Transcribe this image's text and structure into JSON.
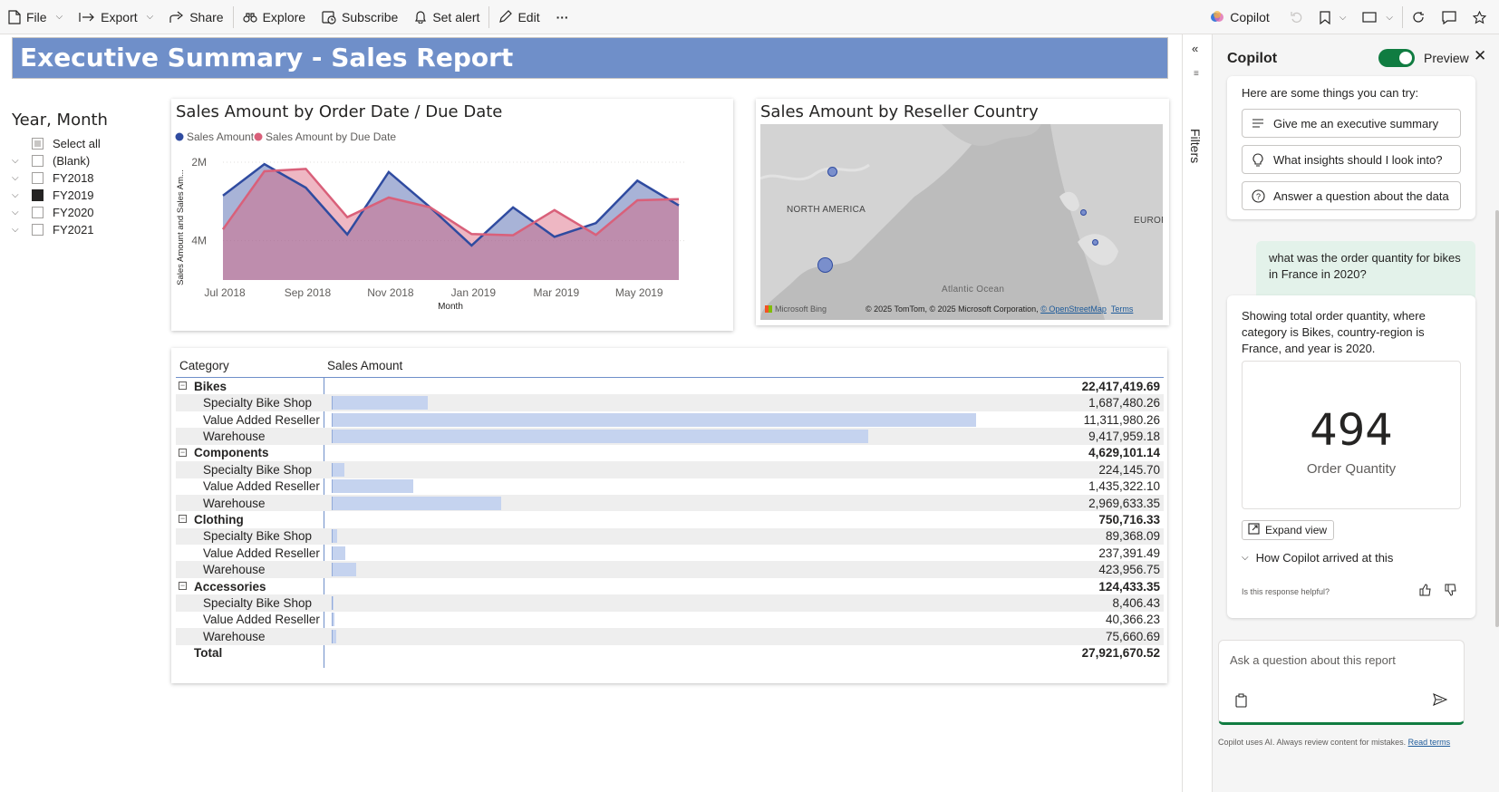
{
  "toolbar": {
    "file": "File",
    "export": "Export",
    "share": "Share",
    "explore": "Explore",
    "subscribe": "Subscribe",
    "set_alert": "Set alert",
    "edit": "Edit",
    "more": "···",
    "copilot": "Copilot"
  },
  "report": {
    "title": "Executive Summary - Sales Report"
  },
  "slicer": {
    "title": "Year, Month",
    "items": [
      {
        "label": "Select all",
        "state": "partial",
        "expandable": false
      },
      {
        "label": "(Blank)",
        "state": "unchecked",
        "expandable": true
      },
      {
        "label": "FY2018",
        "state": "unchecked",
        "expandable": true
      },
      {
        "label": "FY2019",
        "state": "checked",
        "expandable": true
      },
      {
        "label": "FY2020",
        "state": "unchecked",
        "expandable": true
      },
      {
        "label": "FY2021",
        "state": "unchecked",
        "expandable": true
      }
    ]
  },
  "area_chart": {
    "title": "Sales Amount by Order Date / Due Date",
    "legend": [
      "Sales Amount",
      "Sales Amount by Due Date"
    ],
    "ylabel": "Sales Amount and Sales Am...",
    "xlabel": "Month",
    "y_ticks": [
      "4M",
      "2M"
    ],
    "x_ticks": [
      "Jul 2018",
      "Sep 2018",
      "Nov 2018",
      "Jan 2019",
      "Mar 2019",
      "May 2019"
    ]
  },
  "map": {
    "title": "Sales Amount by Reseller Country",
    "label_na": "NORTH AMERICA",
    "label_eu": "EUROF",
    "label_ocean": "Atlantic Ocean",
    "bing": "Microsoft Bing",
    "copyright": "© 2025 TomTom, © 2025 Microsoft Corporation, ",
    "osm": "© OpenStreetMap",
    "terms": "Terms"
  },
  "matrix": {
    "col_category": "Category",
    "col_sales": "Sales Amount",
    "max_value": 11311980.26,
    "rows": [
      {
        "label": "Bikes",
        "value": "22,417,419.69",
        "level": 0
      },
      {
        "label": "Specialty Bike Shop",
        "value": "1,687,480.26",
        "level": 1,
        "num": 1687480.26
      },
      {
        "label": "Value Added Reseller",
        "value": "11,311,980.26",
        "level": 1,
        "num": 11311980.26
      },
      {
        "label": "Warehouse",
        "value": "9,417,959.18",
        "level": 1,
        "num": 9417959.18
      },
      {
        "label": "Components",
        "value": "4,629,101.14",
        "level": 0
      },
      {
        "label": "Specialty Bike Shop",
        "value": "224,145.70",
        "level": 1,
        "num": 224145.7
      },
      {
        "label": "Value Added Reseller",
        "value": "1,435,322.10",
        "level": 1,
        "num": 1435322.1
      },
      {
        "label": "Warehouse",
        "value": "2,969,633.35",
        "level": 1,
        "num": 2969633.35
      },
      {
        "label": "Clothing",
        "value": "750,716.33",
        "level": 0
      },
      {
        "label": "Specialty Bike Shop",
        "value": "89,368.09",
        "level": 1,
        "num": 89368.09
      },
      {
        "label": "Value Added Reseller",
        "value": "237,391.49",
        "level": 1,
        "num": 237391.49
      },
      {
        "label": "Warehouse",
        "value": "423,956.75",
        "level": 1,
        "num": 423956.75
      },
      {
        "label": "Accessories",
        "value": "124,433.35",
        "level": 0
      },
      {
        "label": "Specialty Bike Shop",
        "value": "8,406.43",
        "level": 1,
        "num": 8406.43
      },
      {
        "label": "Value Added Reseller",
        "value": "40,366.23",
        "level": 1,
        "num": 40366.23
      },
      {
        "label": "Warehouse",
        "value": "75,660.69",
        "level": 1,
        "num": 75660.69
      },
      {
        "label": "Total",
        "value": "27,921,670.52",
        "level": 2
      }
    ]
  },
  "filters": {
    "label": "Filters"
  },
  "copilot": {
    "title": "Copilot",
    "preview": "Preview",
    "intro": "Here are some things you can try:",
    "suggestions": [
      "Give me an executive summary",
      "What insights should I look into?",
      "Answer a question about the data"
    ],
    "user_question": "what was the order quantity for bikes in France in 2020?",
    "response": "Showing total order quantity, where category is Bikes, country-region is France, and year is 2020.",
    "kpi_value": "494",
    "kpi_label": "Order Quantity",
    "expand": "Expand view",
    "arrived": "How Copilot arrived at this",
    "helpful": "Is this response helpful?",
    "ask_placeholder": "Ask a question about this report",
    "disclaimer": "Copilot uses AI. Always review content for mistakes. ",
    "read_terms": "Read terms"
  },
  "colors": {
    "accent": "#6f8fc9",
    "series1": "#2f4ba0",
    "series2": "#d9607a",
    "green": "#107c41"
  },
  "chart_data": {
    "type": "area",
    "title": "Sales Amount by Order Date / Due Date",
    "xlabel": "Month",
    "ylabel": "Sales Amount and Sales Am...",
    "categories": [
      "Jul 2018",
      "Aug 2018",
      "Sep 2018",
      "Oct 2018",
      "Nov 2018",
      "Dec 2018",
      "Jan 2019",
      "Feb 2019",
      "Mar 2019",
      "Apr 2019",
      "May 2019",
      "Jun 2019"
    ],
    "ylim": [
      1000000,
      4300000
    ],
    "y_ticks": [
      2000000,
      4000000
    ],
    "series": [
      {
        "name": "Sales Amount",
        "values": [
          3150000,
          3950000,
          3350000,
          2160000,
          3750000,
          2850000,
          1880000,
          2850000,
          2100000,
          2450000,
          3530000,
          2900000
        ]
      },
      {
        "name": "Sales Amount by Due Date",
        "values": [
          2290000,
          3770000,
          3830000,
          2600000,
          3100000,
          2850000,
          2170000,
          2140000,
          2780000,
          2150000,
          3030000,
          3060000
        ]
      }
    ]
  }
}
